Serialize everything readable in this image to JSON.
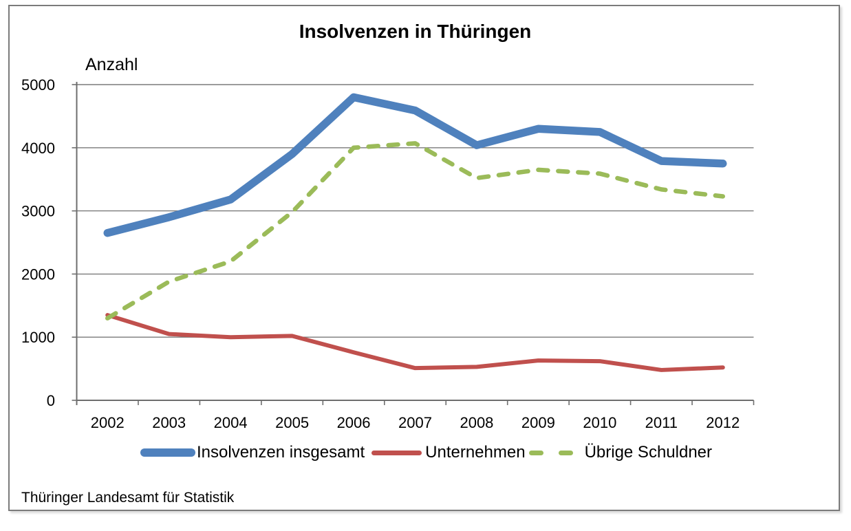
{
  "chart_data": {
    "type": "line",
    "title": "Insolvenzen in Thüringen",
    "ylabel": "Anzahl",
    "xlabel": "",
    "source": "Thüringer Landesamt für Statistik",
    "grid": true,
    "legend_position": "bottom",
    "ylim": [
      0,
      5000
    ],
    "yticks": [
      0,
      1000,
      2000,
      3000,
      4000,
      5000
    ],
    "categories": [
      "2002",
      "2003",
      "2004",
      "2005",
      "2006",
      "2007",
      "2008",
      "2009",
      "2010",
      "2011",
      "2012"
    ],
    "series": [
      {
        "name": "Insolvenzen insgesamt",
        "color": "#4F81BD",
        "style": "solid-thick",
        "values": [
          2650,
          2900,
          3180,
          3900,
          4800,
          4590,
          4040,
          4300,
          4250,
          3790,
          3750
        ]
      },
      {
        "name": "Unternehmen",
        "color": "#C0504D",
        "style": "solid",
        "values": [
          1350,
          1050,
          1000,
          1020,
          760,
          510,
          530,
          630,
          620,
          480,
          520
        ]
      },
      {
        "name": "Übrige Schuldner",
        "color": "#9BBB59",
        "style": "dashed",
        "values": [
          1300,
          1880,
          2200,
          2980,
          4000,
          4070,
          3520,
          3650,
          3590,
          3340,
          3230
        ]
      }
    ],
    "grid_color": "#7a7a7a",
    "axis_color": "#6e6e6e"
  }
}
